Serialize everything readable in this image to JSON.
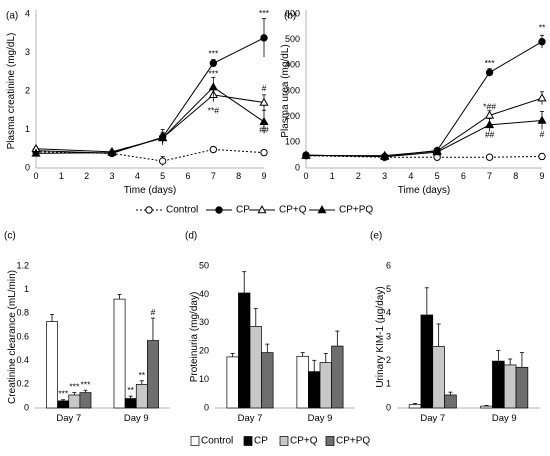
{
  "chart_data": [
    {
      "panel": "(a)",
      "type": "line",
      "ylabel": "Plasma creatinine (mg/dL)",
      "xlabel": "Time (days)",
      "xlim": [
        0,
        9
      ],
      "ylim": [
        0,
        4
      ],
      "xticks": [
        "0",
        "1",
        "2",
        "3",
        "4",
        "5",
        "6",
        "7",
        "8",
        "9"
      ],
      "yticks": [
        "0",
        "1",
        "2",
        "3",
        "4"
      ],
      "series": [
        {
          "name": "Control",
          "style": "dotted-open",
          "x": [
            0,
            3,
            5,
            7,
            9
          ],
          "y": [
            0.42,
            0.38,
            0.18,
            0.48,
            0.4
          ],
          "err": [
            0.05,
            0.05,
            0.12,
            0.04,
            0.04
          ]
        },
        {
          "name": "CP",
          "style": "solid-circle",
          "x": [
            0,
            3,
            5,
            7,
            9
          ],
          "y": [
            0.45,
            0.38,
            0.8,
            2.72,
            3.38
          ],
          "err": [
            0.05,
            0.08,
            0.2,
            0.1,
            0.5
          ]
        },
        {
          "name": "CP+Q",
          "style": "open-triangle",
          "x": [
            0,
            3,
            5,
            7,
            9
          ],
          "y": [
            0.5,
            0.42,
            0.78,
            1.9,
            1.7
          ],
          "err": [
            0.05,
            0.05,
            0.15,
            0.18,
            0.2
          ]
        },
        {
          "name": "CP+PQ",
          "style": "solid-triangle",
          "x": [
            0,
            3,
            5,
            7,
            9
          ],
          "y": [
            0.38,
            0.4,
            0.78,
            2.1,
            1.2
          ],
          "err": [
            0.05,
            0.05,
            0.12,
            0.25,
            0.3
          ]
        }
      ],
      "annotations": [
        {
          "x": 9,
          "y": 3.95,
          "text": "***"
        },
        {
          "x": 7,
          "y": 2.9,
          "text": "***"
        },
        {
          "x": 7,
          "y": 2.38,
          "text": "***"
        },
        {
          "x": 7,
          "y": 1.42,
          "text": "**#"
        },
        {
          "x": 9,
          "y": 2.0,
          "text": "#"
        },
        {
          "x": 9,
          "y": 0.92,
          "text": "##"
        }
      ]
    },
    {
      "panel": "(b)",
      "type": "line",
      "ylabel": "Plasma urea (mg/dL)",
      "xlabel": "Time (days)",
      "xlim": [
        0,
        9
      ],
      "ylim": [
        0,
        600
      ],
      "xticks": [
        "0",
        "1",
        "2",
        "3",
        "4",
        "5",
        "6",
        "7",
        "8",
        "9"
      ],
      "yticks": [
        "0",
        "100",
        "200",
        "300",
        "400",
        "500",
        "600"
      ],
      "series": [
        {
          "name": "Control",
          "style": "dotted-open",
          "x": [
            0,
            3,
            5,
            7,
            9
          ],
          "y": [
            48,
            42,
            42,
            42,
            45
          ],
          "err": [
            3,
            3,
            3,
            3,
            3
          ]
        },
        {
          "name": "CP",
          "style": "solid-circle",
          "x": [
            0,
            3,
            5,
            7,
            9
          ],
          "y": [
            50,
            45,
            68,
            372,
            492
          ],
          "err": [
            4,
            4,
            6,
            15,
            25
          ]
        },
        {
          "name": "CP+Q",
          "style": "open-triangle",
          "x": [
            0,
            3,
            5,
            7,
            9
          ],
          "y": [
            48,
            48,
            66,
            205,
            272
          ],
          "err": [
            4,
            4,
            6,
            18,
            25
          ]
        },
        {
          "name": "CP+PQ",
          "style": "solid-triangle",
          "x": [
            0,
            3,
            5,
            7,
            9
          ],
          "y": [
            50,
            44,
            62,
            168,
            185
          ],
          "err": [
            4,
            4,
            6,
            25,
            35
          ]
        }
      ],
      "annotations": [
        {
          "x": 9,
          "y": 535,
          "text": "**"
        },
        {
          "x": 7,
          "y": 398,
          "text": "***"
        },
        {
          "x": 7,
          "y": 228,
          "text": "*##"
        },
        {
          "x": 7,
          "y": 118,
          "text": "##"
        },
        {
          "x": 3,
          "y": 26,
          "text": "#"
        },
        {
          "x": 9,
          "y": 120,
          "text": "#"
        }
      ]
    },
    {
      "panel": "(c)",
      "type": "bar",
      "ylabel": "Creatinine clearance (mL/min)",
      "categories": [
        "Day 7",
        "Day 9"
      ],
      "ylim": [
        0,
        1.2
      ],
      "yticks": [
        "0",
        "0.2",
        "0.4",
        "0.6",
        "0.8",
        "1",
        "1.2"
      ],
      "series": [
        {
          "name": "Control",
          "values": [
            0.73,
            0.92
          ],
          "err": [
            0.06,
            0.04
          ]
        },
        {
          "name": "CP",
          "values": [
            0.06,
            0.08
          ],
          "err": [
            0.01,
            0.02
          ]
        },
        {
          "name": "CP+Q",
          "values": [
            0.11,
            0.2
          ],
          "err": [
            0.02,
            0.03
          ]
        },
        {
          "name": "CP+PQ",
          "values": [
            0.13,
            0.57
          ],
          "err": [
            0.02,
            0.19
          ]
        }
      ],
      "annotations": [
        {
          "cat": 0,
          "ser": 1,
          "text": "***"
        },
        {
          "cat": 0,
          "ser": 2,
          "text": "***"
        },
        {
          "cat": 0,
          "ser": 3,
          "text": "***"
        },
        {
          "cat": 1,
          "ser": 1,
          "text": "**"
        },
        {
          "cat": 1,
          "ser": 2,
          "text": "**"
        },
        {
          "cat": 1,
          "ser": 3,
          "text": "#"
        }
      ]
    },
    {
      "panel": "(d)",
      "type": "bar",
      "ylabel": "Proteinuria (mg/day)",
      "categories": [
        "Day 7",
        "Day 9"
      ],
      "ylim": [
        0,
        50
      ],
      "yticks": [
        "0",
        "10",
        "20",
        "30",
        "40",
        "50"
      ],
      "series": [
        {
          "name": "Control",
          "values": [
            18,
            18.2
          ],
          "err": [
            1.2,
            1.3
          ]
        },
        {
          "name": "CP",
          "values": [
            40.5,
            12.8
          ],
          "err": [
            7.5,
            4
          ]
        },
        {
          "name": "CP+Q",
          "values": [
            28.7,
            16
          ],
          "err": [
            6.3,
            3.2
          ]
        },
        {
          "name": "CP+PQ",
          "values": [
            19.5,
            21.8
          ],
          "err": [
            3,
            5.3
          ]
        }
      ],
      "annotations": []
    },
    {
      "panel": "(e)",
      "type": "bar",
      "ylabel": "Urinary KIM-1 (µg/day)",
      "categories": [
        "Day 7",
        "Day 9"
      ],
      "ylim": [
        0,
        6
      ],
      "yticks": [
        "0",
        "1",
        "2",
        "3",
        "4",
        "5",
        "6"
      ],
      "series": [
        {
          "name": "Control",
          "values": [
            0.14,
            0.08
          ],
          "err": [
            0.05,
            0.03
          ]
        },
        {
          "name": "CP",
          "values": [
            3.93,
            1.98
          ],
          "err": [
            1.15,
            0.45
          ]
        },
        {
          "name": "CP+Q",
          "values": [
            2.6,
            1.82
          ],
          "err": [
            0.95,
            0.25
          ]
        },
        {
          "name": "CP+PQ",
          "values": [
            0.55,
            1.72
          ],
          "err": [
            0.12,
            0.62
          ]
        }
      ],
      "annotations": []
    }
  ],
  "line_legend": [
    "Control",
    "CP",
    "CP+Q",
    "CP+PQ"
  ],
  "bar_legend": [
    "Control",
    "CP",
    "CP+Q",
    "CP+PQ"
  ],
  "colors": {
    "Control": "#ffffff",
    "CP": "#000000",
    "CP+Q": "#c8c8c8",
    "CP+PQ": "#6e6e6e",
    "axis": "#b5b5b5"
  }
}
